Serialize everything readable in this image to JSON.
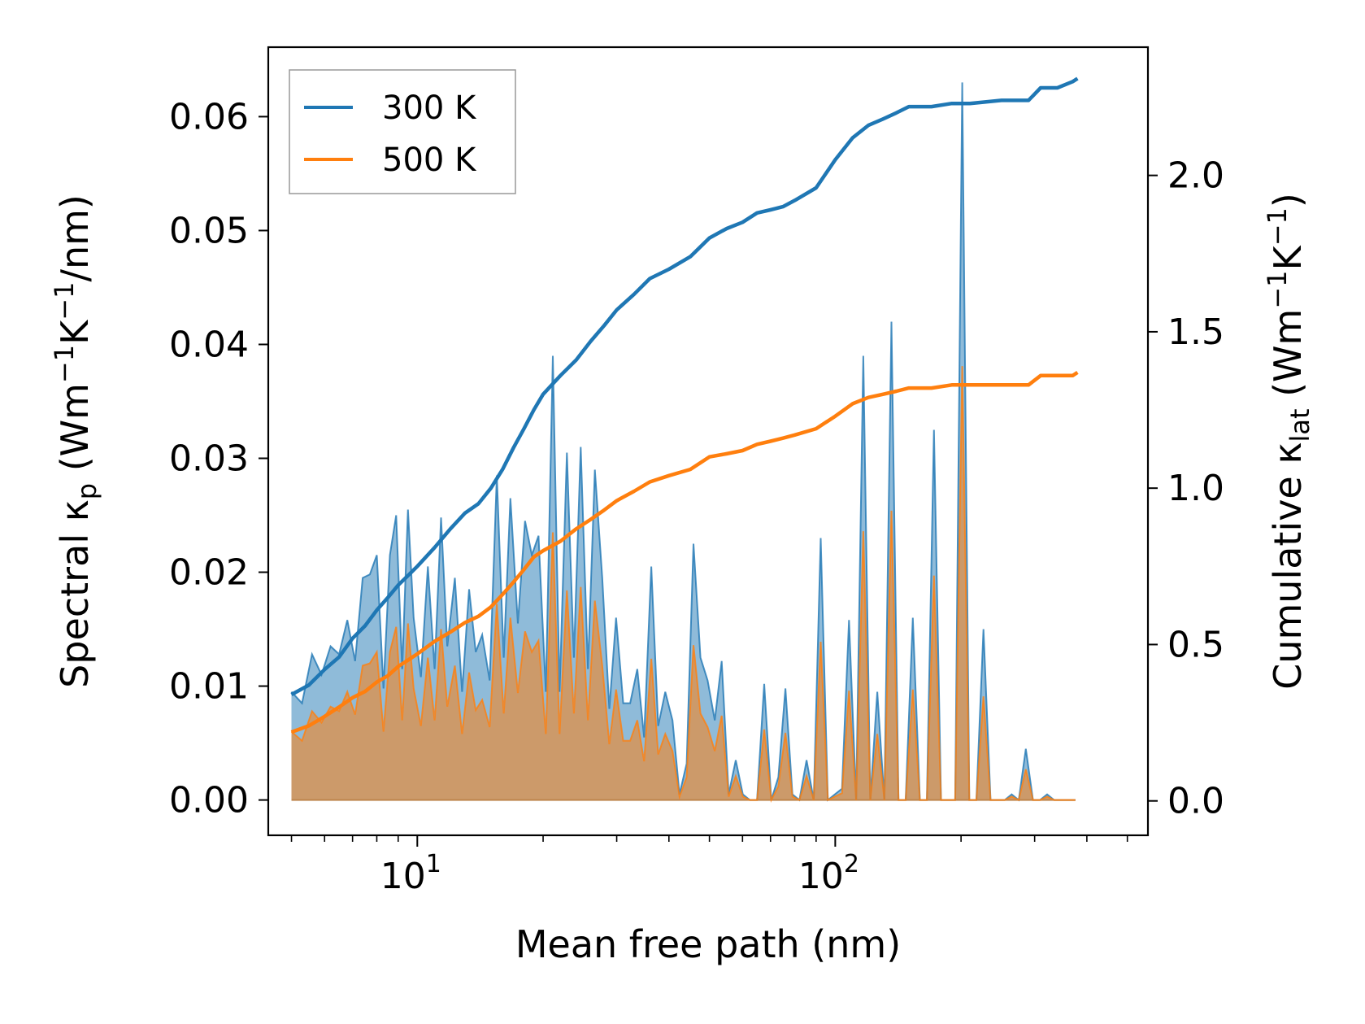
{
  "chart_data": {
    "type": "area+line",
    "xlabel": "Mean free path (nm)",
    "ylabel_left": "Spectral κ_p (Wm⁻¹K⁻¹/nm)",
    "ylabel_left_parts": {
      "prefix": "Spectral κ",
      "sub": "p",
      "mid": " (Wm",
      "sup1": "−1",
      "mid2": "K",
      "sup2": "−1",
      "suffix": "/nm)"
    },
    "ylabel_right": "Cumulative κ_lat (Wm⁻¹K⁻¹)",
    "ylabel_right_parts": {
      "prefix": "Cumulative κ",
      "sub": "lat",
      "mid": " (Wm",
      "sup1": "−1",
      "mid2": "K",
      "sup2": "−1",
      "suffix": ")"
    },
    "x_scale": "log",
    "xlim": [
      4.4,
      560
    ],
    "x_ticks": [
      {
        "value": 10,
        "base": "10",
        "exp": "1"
      },
      {
        "value": 100,
        "base": "10",
        "exp": "2"
      }
    ],
    "ylim_left": [
      -0.0031,
      0.0661
    ],
    "yticks_left": [
      "0.00",
      "0.01",
      "0.02",
      "0.03",
      "0.04",
      "0.05",
      "0.06"
    ],
    "ylim_right": [
      -0.11,
      2.41
    ],
    "yticks_right": [
      "0.0",
      "0.5",
      "1.0",
      "1.5",
      "2.0"
    ],
    "legend_location": "upper-left",
    "colors": {
      "300 K": "#1f77b4",
      "500 K": "#ff7f0e",
      "fill_300": "#1f77b4",
      "fill_500": "#ff7f0e",
      "overlap_fill": "#c49a6c"
    },
    "series": [
      {
        "name": "300 K",
        "spectral": {
          "x": [
            5.0,
            5.3,
            5.6,
            5.9,
            6.2,
            6.5,
            6.8,
            7.1,
            7.4,
            7.7,
            8.0,
            8.3,
            8.6,
            8.9,
            9.2,
            9.5,
            9.8,
            10.2,
            10.6,
            11.0,
            11.4,
            11.8,
            12.3,
            12.8,
            13.3,
            13.8,
            14.3,
            14.9,
            15.5,
            16.1,
            16.7,
            17.4,
            18.1,
            18.8,
            19.5,
            20.3,
            21.1,
            21.9,
            22.8,
            23.7,
            24.6,
            25.6,
            26.6,
            27.7,
            28.8,
            29.9,
            31.1,
            32.3,
            33.6,
            34.9,
            36.3,
            37.7,
            39.2,
            40.8,
            42.4,
            44.1,
            45.8,
            47.6,
            49.5,
            51.5,
            53.5,
            55.6,
            57.8,
            60.1,
            62.5,
            65.0,
            67.6,
            70.3,
            73.1,
            76.0,
            79.0,
            82.1,
            85.4,
            88.8,
            92.3,
            96.0,
            99.8,
            103.8,
            107.9,
            112.2,
            116.7,
            121.3,
            126.1,
            131.1,
            136.3,
            141.7,
            147.4,
            153.3,
            159.4,
            165.7,
            172.3,
            179.1,
            186.2,
            193.6,
            201.3,
            209.3,
            217.6,
            226.3,
            235.3,
            244.6,
            254.3,
            264.4,
            274.9,
            285.8,
            297.2,
            309.0,
            321.3,
            334.1,
            347.4,
            361.2,
            375.6
          ],
          "y": [
            0.0095,
            0.0085,
            0.0128,
            0.011,
            0.0135,
            0.0128,
            0.0158,
            0.0122,
            0.0195,
            0.0198,
            0.0215,
            0.0098,
            0.0215,
            0.025,
            0.0115,
            0.0255,
            0.016,
            0.0108,
            0.0205,
            0.0115,
            0.0248,
            0.0135,
            0.0195,
            0.0095,
            0.0185,
            0.013,
            0.0145,
            0.0105,
            0.0285,
            0.0125,
            0.0265,
            0.0155,
            0.0245,
            0.0215,
            0.0232,
            0.0095,
            0.039,
            0.0095,
            0.0305,
            0.0125,
            0.031,
            0.0115,
            0.029,
            0.0195,
            0.008,
            0.016,
            0.0085,
            0.0085,
            0.0115,
            0.0055,
            0.0205,
            0.0065,
            0.0095,
            0.007,
            0.0005,
            0.0032,
            0.0225,
            0.0125,
            0.0105,
            0.007,
            0.0122,
            0.0005,
            0.0035,
            0.0005,
            0.0,
            0.0,
            0.0102,
            0.0,
            0.002,
            0.0098,
            0.0005,
            0.0,
            0.0035,
            0.0,
            0.023,
            0.0,
            0.0005,
            0.001,
            0.0158,
            0.0,
            0.039,
            0.0,
            0.0095,
            0.0,
            0.042,
            0.0,
            0.0,
            0.016,
            0.0,
            0.0,
            0.0325,
            0.0,
            0.0,
            0.0,
            0.063,
            0.0,
            0.0,
            0.015,
            0.0,
            0.0,
            0.0,
            0.0005,
            0.0,
            0.0045,
            0.0,
            0.0,
            0.0005,
            0.0,
            0.0,
            0.0,
            0.0
          ],
          "y_alt": [],
          "note_y": "values in Wm⁻¹K⁻¹/nm"
        },
        "cumulative": {
          "x": [
            5.0,
            5.5,
            6.0,
            6.5,
            7.0,
            7.5,
            8.0,
            8.5,
            9.0,
            9.5,
            10.0,
            11.0,
            12.0,
            13.0,
            14.0,
            15.0,
            16.0,
            17.0,
            18.0,
            19.0,
            20.0,
            22.0,
            24.0,
            26.0,
            28.0,
            30.0,
            33.0,
            36.0,
            40.0,
            45.0,
            50.0,
            55.0,
            60.0,
            65.0,
            70.0,
            75.0,
            80.0,
            90.0,
            100.0,
            110.0,
            120.0,
            130.0,
            140.0,
            150.0,
            170.0,
            190.0,
            210.0,
            250.0,
            290.0,
            310.0,
            340.0,
            370.0,
            380.0
          ],
          "y": [
            0.34,
            0.37,
            0.42,
            0.46,
            0.52,
            0.56,
            0.61,
            0.65,
            0.69,
            0.72,
            0.75,
            0.81,
            0.87,
            0.92,
            0.95,
            1.0,
            1.06,
            1.13,
            1.19,
            1.25,
            1.3,
            1.36,
            1.41,
            1.47,
            1.52,
            1.57,
            1.62,
            1.67,
            1.7,
            1.74,
            1.8,
            1.83,
            1.85,
            1.88,
            1.89,
            1.9,
            1.92,
            1.96,
            2.05,
            2.12,
            2.16,
            2.18,
            2.2,
            2.22,
            2.22,
            2.23,
            2.23,
            2.24,
            2.24,
            2.28,
            2.28,
            2.3,
            2.31
          ]
        }
      },
      {
        "name": "500 K",
        "spectral": {
          "x": [
            5.0,
            5.3,
            5.6,
            5.9,
            6.2,
            6.5,
            6.8,
            7.1,
            7.4,
            7.7,
            8.0,
            8.3,
            8.6,
            8.9,
            9.2,
            9.5,
            9.8,
            10.2,
            10.6,
            11.0,
            11.4,
            11.8,
            12.3,
            12.8,
            13.3,
            13.8,
            14.3,
            14.9,
            15.5,
            16.1,
            16.7,
            17.4,
            18.1,
            18.8,
            19.5,
            20.3,
            21.1,
            21.9,
            22.8,
            23.7,
            24.6,
            25.6,
            26.6,
            27.7,
            28.8,
            29.9,
            31.1,
            32.3,
            33.6,
            34.9,
            36.3,
            37.7,
            39.2,
            40.8,
            42.4,
            44.1,
            45.8,
            47.6,
            49.5,
            51.5,
            53.5,
            55.6,
            57.8,
            60.1,
            62.5,
            65.0,
            67.6,
            70.3,
            73.1,
            76.0,
            79.0,
            82.1,
            85.4,
            88.8,
            92.3,
            96.0,
            99.8,
            103.8,
            107.9,
            112.2,
            116.7,
            121.3,
            126.1,
            131.1,
            136.3,
            141.7,
            147.4,
            153.3,
            159.4,
            165.7,
            172.3,
            179.1,
            186.2,
            193.6,
            201.3,
            209.3,
            217.6,
            226.3,
            235.3,
            244.6,
            254.3,
            264.4,
            274.9,
            285.8,
            297.2,
            309.0,
            321.3,
            334.1,
            347.4,
            361.2,
            375.6
          ],
          "y": [
            0.006,
            0.0052,
            0.0078,
            0.0068,
            0.0082,
            0.0078,
            0.0095,
            0.0075,
            0.0118,
            0.012,
            0.013,
            0.006,
            0.013,
            0.0152,
            0.007,
            0.0155,
            0.0098,
            0.0065,
            0.0125,
            0.007,
            0.015,
            0.0082,
            0.0118,
            0.0058,
            0.0112,
            0.0079,
            0.0088,
            0.0064,
            0.0172,
            0.0076,
            0.016,
            0.0094,
            0.0148,
            0.013,
            0.014,
            0.0058,
            0.0235,
            0.0058,
            0.0184,
            0.0076,
            0.0187,
            0.007,
            0.0175,
            0.0118,
            0.0049,
            0.0097,
            0.0052,
            0.0052,
            0.007,
            0.0034,
            0.0124,
            0.004,
            0.0058,
            0.0043,
            0.0003,
            0.002,
            0.0136,
            0.0076,
            0.0064,
            0.0043,
            0.0074,
            0.0003,
            0.0021,
            0.0003,
            0.0,
            0.0,
            0.0062,
            0.0,
            0.0012,
            0.0059,
            0.0003,
            0.0,
            0.0021,
            0.0,
            0.0139,
            0.0,
            0.0003,
            0.0006,
            0.0096,
            0.0,
            0.0236,
            0.0,
            0.0058,
            0.0,
            0.0254,
            0.0,
            0.0,
            0.0097,
            0.0,
            0.0,
            0.0197,
            0.0,
            0.0,
            0.0,
            0.0381,
            0.0,
            0.0,
            0.0091,
            0.0,
            0.0,
            0.0,
            0.0003,
            0.0,
            0.0027,
            0.0,
            0.0,
            0.0003,
            0.0,
            0.0,
            0.0,
            0.0
          ],
          "note_y": "values in Wm⁻¹K⁻¹/nm"
        },
        "cumulative": {
          "x": [
            5.0,
            5.5,
            6.0,
            6.5,
            7.0,
            7.5,
            8.0,
            8.5,
            9.0,
            9.5,
            10.0,
            11.0,
            12.0,
            13.0,
            14.0,
            15.0,
            16.0,
            17.0,
            18.0,
            19.0,
            20.0,
            22.0,
            24.0,
            26.0,
            28.0,
            30.0,
            33.0,
            36.0,
            40.0,
            45.0,
            50.0,
            55.0,
            60.0,
            65.0,
            70.0,
            75.0,
            80.0,
            90.0,
            100.0,
            110.0,
            120.0,
            130.0,
            140.0,
            150.0,
            170.0,
            190.0,
            210.0,
            250.0,
            290.0,
            310.0,
            340.0,
            370.0,
            380.0
          ],
          "y": [
            0.22,
            0.24,
            0.27,
            0.3,
            0.33,
            0.35,
            0.38,
            0.4,
            0.43,
            0.45,
            0.47,
            0.51,
            0.54,
            0.57,
            0.59,
            0.62,
            0.66,
            0.7,
            0.74,
            0.78,
            0.8,
            0.83,
            0.87,
            0.9,
            0.93,
            0.96,
            0.99,
            1.02,
            1.04,
            1.06,
            1.1,
            1.11,
            1.12,
            1.14,
            1.15,
            1.16,
            1.17,
            1.19,
            1.23,
            1.27,
            1.29,
            1.3,
            1.31,
            1.32,
            1.32,
            1.33,
            1.33,
            1.33,
            1.33,
            1.36,
            1.36,
            1.36,
            1.37
          ]
        }
      }
    ]
  }
}
